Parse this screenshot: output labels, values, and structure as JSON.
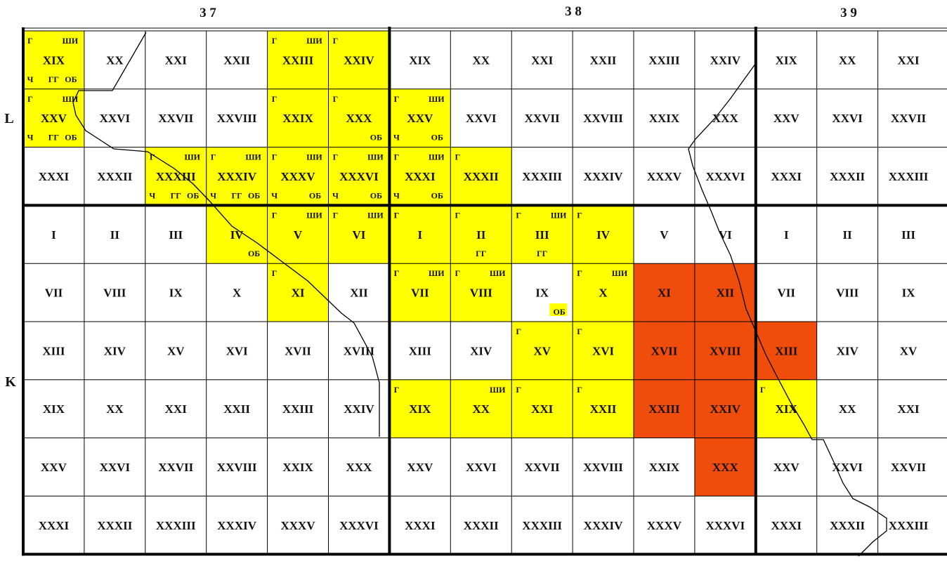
{
  "columns": [
    {
      "label": "3 7"
    },
    {
      "label": "3 8"
    },
    {
      "label": "3 9"
    }
  ],
  "rows": [
    {
      "label": "L"
    },
    {
      "label": "K"
    }
  ],
  "colors": {
    "yellow": "#ffff00",
    "red": "#f04c0c",
    "grid": "#000000"
  },
  "L_labels": [
    "XIX",
    "XX",
    "XXI",
    "XXII",
    "XXIII",
    "XXIV",
    "XXV",
    "XXVI",
    "XXVII",
    "XXVIII",
    "XXIX",
    "XXX",
    "XXXI",
    "XXXII",
    "XXXIII",
    "XXXIV",
    "XXXV",
    "XXXVI"
  ],
  "K_labels": [
    "I",
    "II",
    "III",
    "IV",
    "V",
    "VI",
    "VII",
    "VIII",
    "IX",
    "X",
    "XI",
    "XII",
    "XIII",
    "XIV",
    "XV",
    "XVI",
    "XVII",
    "XVIII",
    "XIX",
    "XX",
    "XXI",
    "XXII",
    "XXIII",
    "XXIV",
    "XXV",
    "XXVI",
    "XXVII",
    "XXVIII",
    "XXIX",
    "XXX",
    "XXXI",
    "XXXII",
    "XXXIII",
    "XXXIV",
    "XXXV",
    "XXXVI"
  ],
  "fills": [
    {
      "r": 0,
      "c": 0,
      "color": "yellow"
    },
    {
      "r": 0,
      "c": 4,
      "color": "yellow"
    },
    {
      "r": 0,
      "c": 5,
      "color": "yellow"
    },
    {
      "r": 1,
      "c": 0,
      "color": "yellow"
    },
    {
      "r": 1,
      "c": 4,
      "color": "yellow"
    },
    {
      "r": 1,
      "c": 5,
      "color": "yellow"
    },
    {
      "r": 1,
      "c": 6,
      "color": "yellow"
    },
    {
      "r": 2,
      "c": 2,
      "color": "yellow"
    },
    {
      "r": 2,
      "c": 3,
      "color": "yellow"
    },
    {
      "r": 2,
      "c": 4,
      "color": "yellow"
    },
    {
      "r": 2,
      "c": 5,
      "color": "yellow"
    },
    {
      "r": 2,
      "c": 6,
      "color": "yellow"
    },
    {
      "r": 2,
      "c": 7,
      "color": "yellow"
    },
    {
      "r": 3,
      "c": 3,
      "color": "yellow"
    },
    {
      "r": 3,
      "c": 4,
      "color": "yellow"
    },
    {
      "r": 3,
      "c": 5,
      "color": "yellow"
    },
    {
      "r": 3,
      "c": 6,
      "color": "yellow"
    },
    {
      "r": 3,
      "c": 7,
      "color": "yellow"
    },
    {
      "r": 3,
      "c": 8,
      "color": "yellow"
    },
    {
      "r": 3,
      "c": 9,
      "color": "yellow"
    },
    {
      "r": 4,
      "c": 4,
      "color": "yellow"
    },
    {
      "r": 4,
      "c": 6,
      "color": "yellow"
    },
    {
      "r": 4,
      "c": 7,
      "color": "yellow"
    },
    {
      "r": 4,
      "c": 9,
      "color": "yellow"
    },
    {
      "r": 4,
      "c": 10,
      "color": "red"
    },
    {
      "r": 4,
      "c": 11,
      "color": "red"
    },
    {
      "r": 5,
      "c": 8,
      "color": "yellow"
    },
    {
      "r": 5,
      "c": 9,
      "color": "yellow"
    },
    {
      "r": 5,
      "c": 10,
      "color": "red"
    },
    {
      "r": 5,
      "c": 11,
      "color": "red"
    },
    {
      "r": 5,
      "c": 12,
      "color": "red"
    },
    {
      "r": 6,
      "c": 6,
      "color": "yellow"
    },
    {
      "r": 6,
      "c": 7,
      "color": "yellow"
    },
    {
      "r": 6,
      "c": 8,
      "color": "yellow"
    },
    {
      "r": 6,
      "c": 9,
      "color": "yellow"
    },
    {
      "r": 6,
      "c": 10,
      "color": "red"
    },
    {
      "r": 6,
      "c": 11,
      "color": "red"
    },
    {
      "r": 6,
      "c": 12,
      "color": "yellow"
    },
    {
      "r": 7,
      "c": 11,
      "color": "red"
    }
  ],
  "tags": [
    {
      "r": 0,
      "c": 0,
      "tl": "Г",
      "tr": "ШИ",
      "bl": "Ч",
      "bm": "ГГ",
      "br": "ОБ"
    },
    {
      "r": 0,
      "c": 4,
      "tl": "Г",
      "tr": "ШИ"
    },
    {
      "r": 0,
      "c": 5,
      "tl": "Г"
    },
    {
      "r": 1,
      "c": 0,
      "tl": "Г",
      "tr": "ШИ",
      "bl": "Ч",
      "bm": "ГГ",
      "br": "ОБ"
    },
    {
      "r": 1,
      "c": 4,
      "tl": "Г"
    },
    {
      "r": 1,
      "c": 5,
      "tl": "Г",
      "br": "ОБ"
    },
    {
      "r": 1,
      "c": 6,
      "tl": "Г",
      "tr": "ШИ",
      "bl": "Ч",
      "br": "ОБ"
    },
    {
      "r": 2,
      "c": 2,
      "tl": "Г",
      "tr": "ШИ",
      "bl": "Ч",
      "bm": "ГГ",
      "br": "ОБ"
    },
    {
      "r": 2,
      "c": 3,
      "tl": "Г",
      "tr": "ШИ",
      "bl": "Ч",
      "bm": "ГГ",
      "br": "ОБ"
    },
    {
      "r": 2,
      "c": 4,
      "tl": "Г",
      "tr": "ШИ",
      "bl": "Ч",
      "br": "ОБ"
    },
    {
      "r": 2,
      "c": 5,
      "tl": "Г",
      "tr": "ШИ",
      "bl": "Ч",
      "br": "ОБ"
    },
    {
      "r": 2,
      "c": 6,
      "tl": "Г",
      "tr": "ШИ",
      "bl": "Ч",
      "br": "ОБ"
    },
    {
      "r": 2,
      "c": 7,
      "tl": "Г"
    },
    {
      "r": 3,
      "c": 3,
      "br": "ОБ"
    },
    {
      "r": 3,
      "c": 4,
      "tl": "Г",
      "tr": "ШИ"
    },
    {
      "r": 3,
      "c": 5,
      "tl": "Г",
      "tr": "ШИ"
    },
    {
      "r": 3,
      "c": 6,
      "tl": "Г"
    },
    {
      "r": 3,
      "c": 7,
      "tl": "Г",
      "bm": "ГГ"
    },
    {
      "r": 3,
      "c": 8,
      "tl": "Г",
      "tr": "ШИ",
      "bm": "ГГ"
    },
    {
      "r": 3,
      "c": 9,
      "tl": "Г"
    },
    {
      "r": 4,
      "c": 4,
      "tl": "Г"
    },
    {
      "r": 4,
      "c": 6,
      "tl": "Г",
      "tr": "ШИ"
    },
    {
      "r": 4,
      "c": 7,
      "tl": "Г",
      "tr": "ШИ"
    },
    {
      "r": 4,
      "c": 8,
      "br": "ОБ",
      "badge": true
    },
    {
      "r": 4,
      "c": 9,
      "tl": "Г",
      "tr": "ШИ"
    },
    {
      "r": 5,
      "c": 8,
      "tl": "Г"
    },
    {
      "r": 5,
      "c": 9,
      "tl": "Г"
    },
    {
      "r": 6,
      "c": 6,
      "tl": "Г"
    },
    {
      "r": 6,
      "c": 7,
      "tr": "ШИ"
    },
    {
      "r": 6,
      "c": 8,
      "tl": "Г"
    },
    {
      "r": 6,
      "c": 9,
      "tl": "Г"
    },
    {
      "r": 6,
      "c": 12,
      "tl": "Г"
    }
  ]
}
